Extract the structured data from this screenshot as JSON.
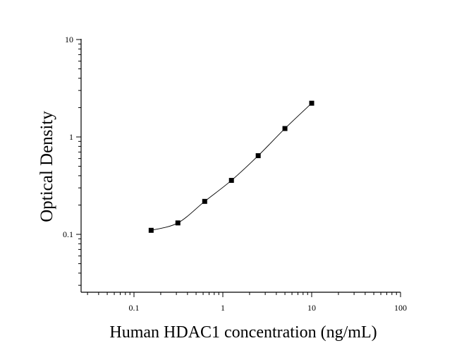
{
  "chart_data": {
    "type": "scatter",
    "title": "",
    "xlabel": "Human HDAC1 concentration (ng/mL)",
    "ylabel": "Optical Density",
    "x_scale": "log",
    "y_scale": "log",
    "xlim": [
      0.03,
      100
    ],
    "ylim": [
      0.025,
      10
    ],
    "x_ticks": [
      {
        "value": 0.1,
        "label": "0.1"
      },
      {
        "value": 1,
        "label": "1"
      },
      {
        "value": 10,
        "label": "10"
      },
      {
        "value": 100,
        "label": "100"
      }
    ],
    "y_ticks": [
      {
        "value": 0.1,
        "label": "0.1"
      },
      {
        "value": 1,
        "label": "1"
      },
      {
        "value": 10,
        "label": "10"
      }
    ],
    "grid": false,
    "legend": "none",
    "series": [
      {
        "points": [
          {
            "x": 0.156,
            "y": 0.11
          },
          {
            "x": 0.312,
            "y": 0.131
          },
          {
            "x": 0.625,
            "y": 0.218
          },
          {
            "x": 1.25,
            "y": 0.358
          },
          {
            "x": 2.5,
            "y": 0.642
          },
          {
            "x": 5,
            "y": 1.22
          },
          {
            "x": 10,
            "y": 2.22
          }
        ],
        "marker": "square",
        "color": "#000000"
      }
    ],
    "fit_curve": true
  }
}
